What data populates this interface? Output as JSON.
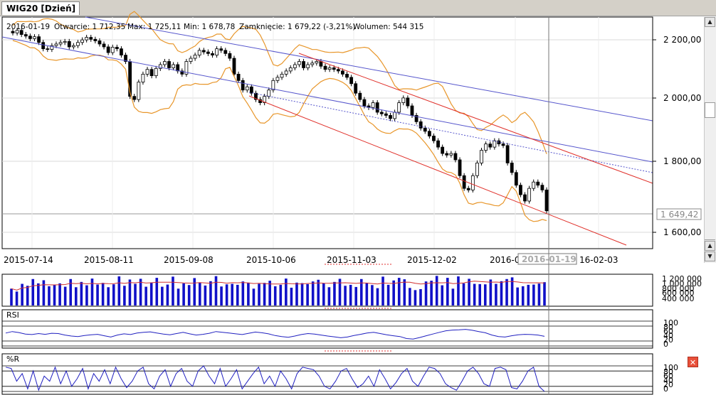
{
  "tab": {
    "title": "WIG20 [Dzień]"
  },
  "info": {
    "date": "2016-01-19",
    "open": "Otwarcie: 1 712,35",
    "high": "Max: 1 725,11",
    "low": "Min: 1 678,78",
    "close": "Zamknięcie: 1 679,22 (-3,21%)",
    "volume": "Wolumen: 544 315"
  },
  "price_axis": {
    "ticks": [
      "2 200,00",
      "2 000,00",
      "1 800,00",
      "1 600,00"
    ],
    "current": "1 649,42"
  },
  "date_axis": {
    "labels": [
      "2015-07-14",
      "2015-08-11",
      "2015-09-08",
      "2015-10-06",
      "2015-11-03",
      "2015-12-02",
      "2016-0",
      "16-02-03"
    ],
    "cursor": "2016-01-19"
  },
  "volume_axis": {
    "ticks": [
      "1 200 000",
      "1 000 000",
      "800 000",
      "600 000",
      "400 000"
    ]
  },
  "rsi": {
    "label": "RSI",
    "ticks": [
      "100",
      "80",
      "60",
      "40",
      "20",
      "0"
    ]
  },
  "wr": {
    "label": "%R",
    "ticks": [
      "100",
      "80",
      "60",
      "40",
      "20",
      "0"
    ]
  },
  "colors": {
    "up": "#1a1a1a",
    "down": "#000000",
    "volume": "#1010c8",
    "bollinger": "#e8962a",
    "channel_red": "#e0302a",
    "channel_blue": "#5555cc",
    "oscillator": "#2020c0"
  },
  "chart_data": [
    {
      "type": "candlestick",
      "title": "WIG20 [Dzień]",
      "x_range": [
        "2015-07-09",
        "2016-01-19"
      ],
      "ylim": [
        1560,
        2290
      ],
      "series": [
        {
          "values": [
            2240,
            2248,
            2235,
            2230,
            2222,
            2228,
            2210,
            2190,
            2188,
            2200,
            2205,
            2210,
            2213,
            2196,
            2200,
            2210,
            2218,
            2226,
            2220,
            2215,
            2205,
            2196,
            2178,
            2195,
            2190,
            2170,
            2150,
            2040,
            2030,
            2085,
            2110,
            2125,
            2105,
            2128,
            2140,
            2150,
            2130,
            2140,
            2120,
            2110,
            2150,
            2160,
            2170,
            2185,
            2180,
            2175,
            2170,
            2190,
            2185,
            2175,
            2160,
            2110,
            2090,
            2060,
            2070,
            2050,
            2030,
            2020,
            2040,
            2060,
            2090,
            2100,
            2110,
            2120,
            2130,
            2140,
            2150,
            2130,
            2140,
            2145,
            2150,
            2135,
            2125,
            2130,
            2125,
            2120,
            2110,
            2100,
            2080,
            2050,
            2030,
            2010,
            2005,
            2020,
            1990,
            1985,
            1980,
            1970,
            1990,
            2020,
            2035,
            2010,
            1980,
            1960,
            1940,
            1930,
            1915,
            1900,
            1880,
            1860,
            1855,
            1860,
            1840,
            1790,
            1750,
            1745,
            1790,
            1830,
            1870,
            1890,
            1880,
            1900,
            1890,
            1885,
            1830,
            1800,
            1760,
            1730,
            1710,
            1750,
            1770,
            1760,
            1745,
            1679.22
          ]
        }
      ]
    },
    {
      "type": "bar",
      "title": "",
      "ylim": [
        0,
        1300000
      ],
      "series": [
        {
          "values": [
            700000,
            580000,
            900000,
            820000,
            1100000,
            920000,
            1050000,
            800000,
            850000,
            920000,
            780000,
            1100000,
            760000,
            980000,
            840000,
            1120000,
            870000,
            940000,
            760000,
            880000,
            1210000,
            820000,
            1080000,
            900000,
            1110000,
            780000,
            960000,
            1150000,
            780000,
            870000,
            1200000,
            700000,
            920000,
            850000,
            1140000,
            950000,
            830000,
            1010000,
            1220000,
            790000,
            880000,
            900000,
            860000,
            1000000,
            950000,
            700000,
            900000,
            940000,
            1030000,
            800000,
            860000,
            1120000,
            740000,
            950000,
            930000,
            890000,
            1000000,
            1070000,
            930000,
            760000,
            980000,
            1110000,
            820000,
            860000,
            770000,
            1100000,
            940000,
            850000,
            720000,
            1200000,
            860000,
            1040000,
            1150000,
            1090000,
            730000,
            640000,
            680000,
            1000000,
            1030000,
            1230000,
            840000,
            1150000,
            700000,
            1210000,
            920000,
            1110000,
            900000,
            890000,
            880000,
            1080000,
            900000,
            1010000,
            1100000,
            1170000,
            750000,
            800000,
            860000,
            870000,
            910000,
            970000
          ]
        }
      ]
    },
    {
      "type": "line",
      "title": "RSI",
      "ylim": [
        0,
        100
      ],
      "series": [
        {
          "values": [
            52,
            58,
            54,
            48,
            46,
            50,
            47,
            51,
            50,
            44,
            40,
            38,
            42,
            45,
            47,
            41,
            36,
            44,
            49,
            46,
            52,
            55,
            57,
            52,
            48,
            45,
            50,
            55,
            49,
            44,
            47,
            51,
            58,
            55,
            52,
            49,
            46,
            51,
            56,
            53,
            49,
            42,
            38,
            35,
            40,
            46,
            50,
            48,
            44,
            40,
            37,
            33,
            36,
            42,
            47,
            52,
            55,
            50,
            45,
            41,
            38,
            30,
            28,
            34,
            41,
            48,
            55,
            61,
            64,
            65,
            67,
            63,
            58,
            53,
            44,
            38,
            36,
            41,
            45,
            47,
            46,
            44,
            39
          ]
        }
      ]
    },
    {
      "type": "line",
      "title": "%R",
      "ylim": [
        0,
        100
      ],
      "series": [
        {
          "values": [
            95,
            90,
            40,
            70,
            10,
            80,
            5,
            60,
            40,
            95,
            30,
            80,
            20,
            50,
            90,
            10,
            70,
            40,
            85,
            30,
            95,
            50,
            15,
            40,
            80,
            95,
            30,
            10,
            60,
            85,
            20,
            70,
            90,
            40,
            20,
            80,
            100,
            60,
            30,
            90,
            20,
            50,
            85,
            10,
            40,
            70,
            95,
            30,
            60,
            20,
            80,
            50,
            10,
            70,
            95,
            90,
            85,
            60,
            20,
            10,
            40,
            80,
            90,
            50,
            15,
            30,
            60,
            20,
            85,
            50,
            10,
            35,
            70,
            90,
            40,
            20,
            60,
            95,
            90,
            70,
            30,
            15,
            5,
            40,
            80,
            95,
            70,
            30,
            20,
            90,
            95,
            85,
            15,
            10,
            40,
            80,
            95,
            20,
            0
          ]
        }
      ]
    }
  ]
}
